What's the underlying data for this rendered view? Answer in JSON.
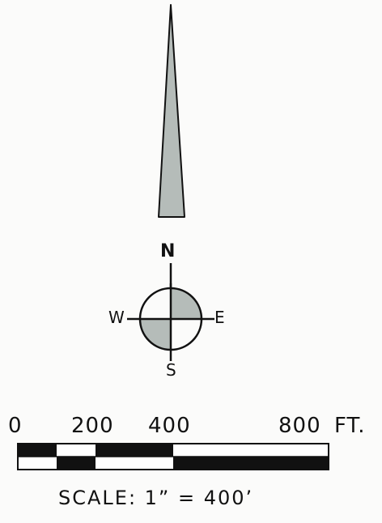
{
  "north_arrow": {
    "label": "N",
    "needle_fill": "#b5bcb9"
  },
  "compass": {
    "north": "N",
    "south": "S",
    "west": "W",
    "east": "E",
    "shade_fill": "#b5bcb9"
  },
  "scale_bar": {
    "ticks": [
      "0",
      "200",
      "400",
      "800"
    ],
    "unit": "FT.",
    "caption": "SCALE: 1” = 400’",
    "fill_color": "#111111"
  }
}
